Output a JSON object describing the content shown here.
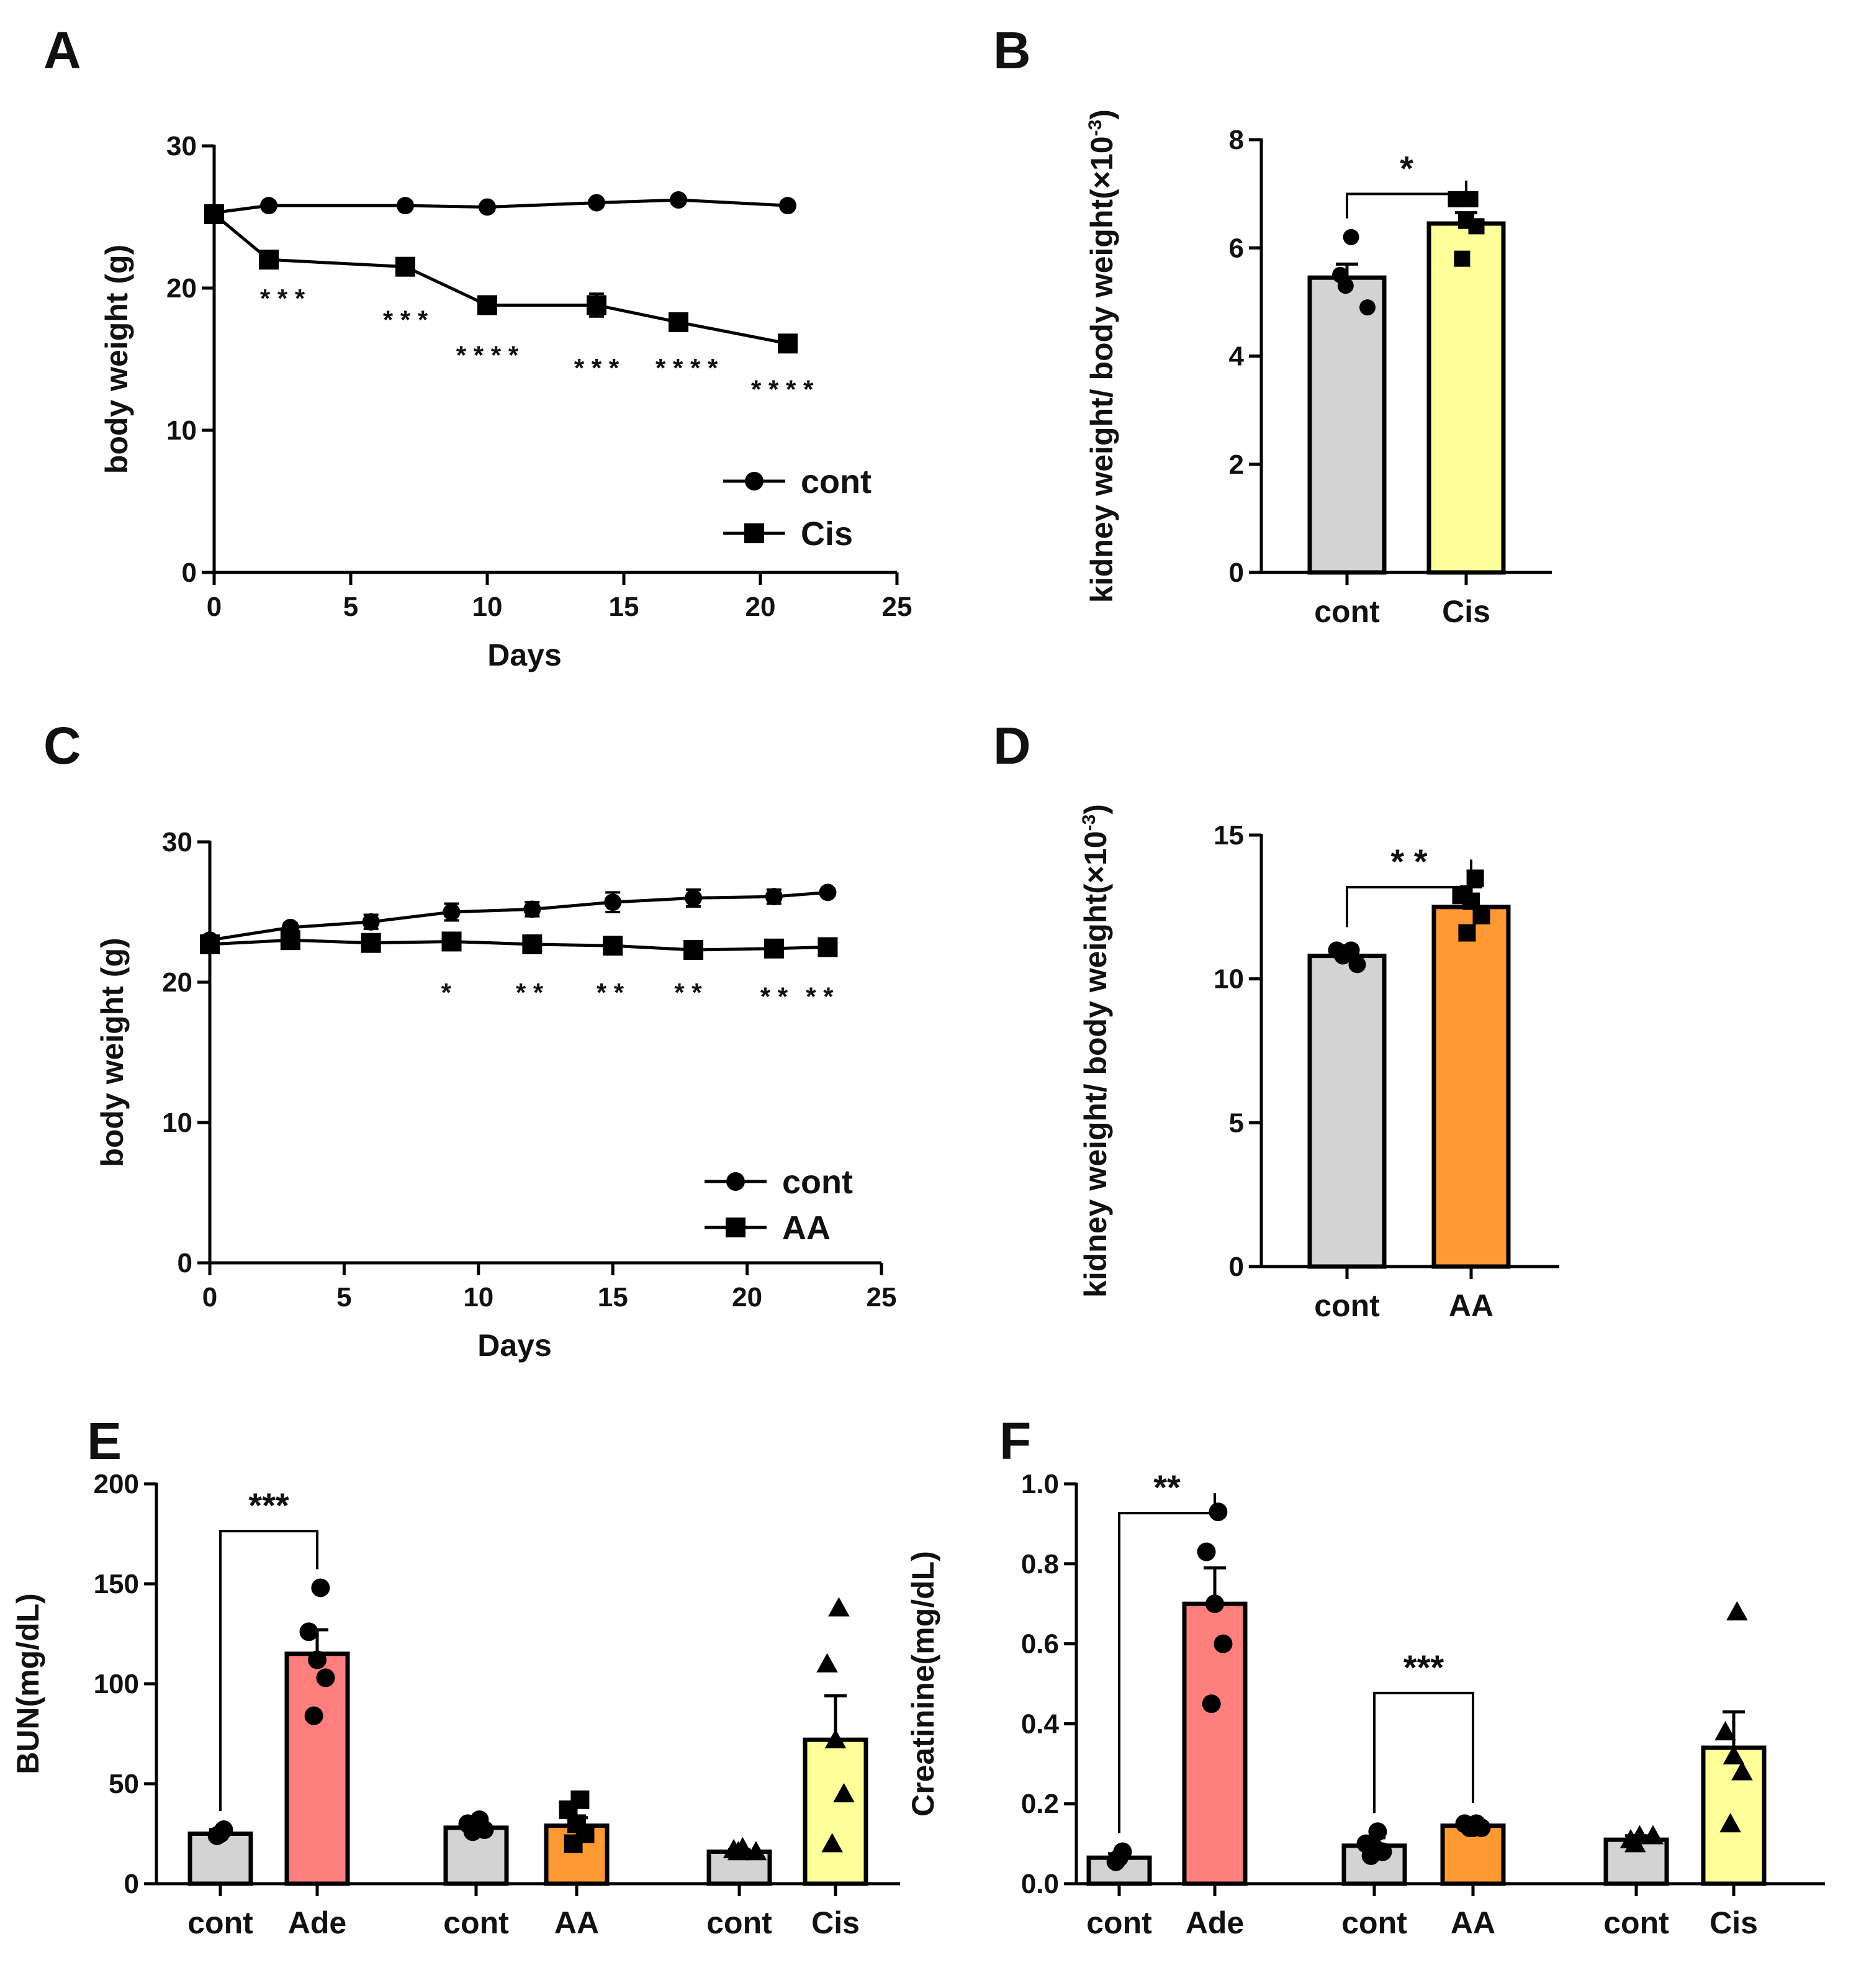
{
  "panel_labels": [
    "A",
    "B",
    "C",
    "D",
    "E",
    "F"
  ],
  "colors": {
    "ink": "#000000",
    "cont_bar": "#d3d3d3",
    "cis_bar": "#ffff99",
    "aa_bar": "#ff9933",
    "ade_bar": "#ff7f7f",
    "star_color": "#0b2a5a"
  },
  "chart_data": [
    {
      "id": "A",
      "type": "line",
      "xlabel": "Days",
      "ylabel": "body weight (g)",
      "xlim": [
        0,
        25
      ],
      "ylim": [
        0,
        30
      ],
      "xticks": [
        0,
        5,
        10,
        15,
        20,
        25
      ],
      "yticks": [
        0,
        10,
        20,
        30
      ],
      "legend_position": "bottom-right",
      "series": [
        {
          "name": "cont",
          "marker": "circle",
          "x": [
            0,
            2,
            7,
            10,
            14,
            17,
            21
          ],
          "y": [
            25.3,
            25.8,
            25.8,
            25.7,
            26.0,
            26.2,
            25.8
          ],
          "err": [
            0,
            0,
            0,
            0,
            0,
            0,
            0
          ]
        },
        {
          "name": "Cis",
          "marker": "square",
          "x": [
            0,
            2,
            7,
            10,
            14,
            17,
            21
          ],
          "y": [
            25.2,
            22.0,
            21.5,
            18.8,
            18.8,
            17.6,
            16.1
          ],
          "err": [
            0,
            0.3,
            0.4,
            0.6,
            0.8,
            0.4,
            0.3
          ]
        }
      ],
      "annotations": [
        {
          "text": "* * *",
          "x": 2.5,
          "y": 19.3
        },
        {
          "text": "* * *",
          "x": 7.0,
          "y": 17.8
        },
        {
          "text": "* * * *",
          "x": 10.0,
          "y": 15.3
        },
        {
          "text": "* * *",
          "x": 14.0,
          "y": 14.4
        },
        {
          "text": "* * * *",
          "x": 17.3,
          "y": 14.4
        },
        {
          "text": "* * * *",
          "x": 20.8,
          "y": 12.9
        }
      ]
    },
    {
      "id": "B",
      "type": "bar",
      "ylabel": "kidney weight/ body weight(×10",
      "ylabel_sup": "-3",
      "ylabel_close": ")",
      "categories": [
        "cont",
        "Cis"
      ],
      "values": [
        5.45,
        6.45
      ],
      "errors": [
        0.25,
        0.2
      ],
      "points": [
        [
          6.2,
          5.5,
          5.3,
          4.9
        ],
        [
          6.9,
          6.9,
          6.5,
          6.4,
          5.8
        ]
      ],
      "markers": [
        "circle",
        "square"
      ],
      "bar_colors": [
        "#d3d3d3",
        "#ffff99"
      ],
      "ylim": [
        0,
        8
      ],
      "yticks": [
        0,
        2,
        4,
        6,
        8
      ],
      "significance": [
        {
          "from": 0,
          "to": 1,
          "text": "*",
          "y": 7.8
        }
      ]
    },
    {
      "id": "C",
      "type": "line",
      "xlabel": "Days",
      "ylabel": "body weight (g)",
      "xlim": [
        0,
        25
      ],
      "ylim": [
        0,
        30
      ],
      "xticks": [
        0,
        5,
        10,
        15,
        20,
        25
      ],
      "yticks": [
        0,
        10,
        20,
        30
      ],
      "legend_position": "bottom-right",
      "series": [
        {
          "name": "cont",
          "marker": "circle",
          "x": [
            0,
            3,
            6,
            9,
            12,
            15,
            18,
            21,
            23
          ],
          "y": [
            23.0,
            23.9,
            24.3,
            25.0,
            25.2,
            25.7,
            26.0,
            26.1,
            26.4
          ],
          "err": [
            0.3,
            0.3,
            0.5,
            0.6,
            0.5,
            0.7,
            0.6,
            0.5,
            0.2
          ]
        },
        {
          "name": "AA",
          "marker": "square",
          "x": [
            0,
            3,
            6,
            9,
            12,
            15,
            18,
            21,
            23
          ],
          "y": [
            22.7,
            23.0,
            22.8,
            22.9,
            22.7,
            22.6,
            22.3,
            22.4,
            22.5
          ],
          "err": [
            0.2,
            0.2,
            0.2,
            0.3,
            0.3,
            0.2,
            0.2,
            0.2,
            0.2
          ]
        }
      ],
      "annotations": [
        {
          "text": "*",
          "x": 8.8,
          "y": 19.3
        },
        {
          "text": "* *",
          "x": 11.9,
          "y": 19.3
        },
        {
          "text": "* *",
          "x": 14.9,
          "y": 19.3
        },
        {
          "text": "* *",
          "x": 17.8,
          "y": 19.3
        },
        {
          "text": "* *",
          "x": 21.0,
          "y": 19.0
        },
        {
          "text": "* *",
          "x": 22.7,
          "y": 19.0
        }
      ]
    },
    {
      "id": "D",
      "type": "bar",
      "ylabel": "kidney weight/ body weight(×10",
      "ylabel_sup": "-3",
      "ylabel_close": ")",
      "categories": [
        "cont",
        "AA"
      ],
      "values": [
        10.8,
        12.5
      ],
      "errors": [
        0.35,
        0.7
      ],
      "points": [
        [
          11.0,
          11.0,
          10.9,
          10.5,
          10.8
        ],
        [
          13.5,
          12.9,
          12.7,
          12.2,
          11.6
        ]
      ],
      "markers": [
        "circle",
        "square"
      ],
      "bar_colors": [
        "#d3d3d3",
        "#ff9933"
      ],
      "ylim": [
        0,
        15
      ],
      "yticks": [
        0,
        5,
        10,
        15
      ],
      "significance": [
        {
          "from": 0,
          "to": 1,
          "text": "* *",
          "y": 14.7
        }
      ]
    },
    {
      "id": "E",
      "type": "bar",
      "ylabel": "BUN(mg/dL)",
      "categories": [
        "cont",
        "Ade",
        "cont",
        "AA",
        "cont",
        "Cis"
      ],
      "values": [
        25,
        115,
        28,
        29,
        16,
        72
      ],
      "errors": [
        2,
        12,
        2,
        4,
        1,
        22
      ],
      "points": [
        [
          27,
          25,
          24
        ],
        [
          148,
          126,
          112,
          103,
          84
        ],
        [
          32,
          30,
          29,
          27,
          26
        ],
        [
          42,
          37,
          30,
          25,
          20
        ],
        [
          18,
          17,
          16,
          16
        ],
        [
          138,
          110,
          72,
          45,
          20
        ]
      ],
      "markers": [
        "circle",
        "circle",
        "circle",
        "square",
        "triangle",
        "triangle"
      ],
      "bar_colors": [
        "#d3d3d3",
        "#ff7f7f",
        "#d3d3d3",
        "#ff9933",
        "#d3d3d3",
        "#ffff99"
      ],
      "ylim": [
        0,
        200
      ],
      "yticks": [
        0,
        50,
        100,
        150,
        200
      ],
      "significance": [
        {
          "from": 0,
          "to": 1,
          "text": "***",
          "y": 195
        }
      ]
    },
    {
      "id": "F",
      "type": "bar",
      "ylabel": "Creatinine(mg/dL)",
      "categories": [
        "cont",
        "Ade",
        "cont",
        "AA",
        "cont",
        "Cis"
      ],
      "values": [
        0.065,
        0.7,
        0.095,
        0.145,
        0.11,
        0.34
      ],
      "errors": [
        0.01,
        0.09,
        0.02,
        0.01,
        0.01,
        0.09
      ],
      "points": [
        [
          0.08,
          0.065,
          0.055
        ],
        [
          0.93,
          0.83,
          0.7,
          0.6,
          0.45
        ],
        [
          0.13,
          0.1,
          0.09,
          0.08,
          0.07
        ],
        [
          0.15,
          0.15,
          0.14,
          0.14,
          0.14
        ],
        [
          0.12,
          0.11,
          0.1,
          0.12
        ],
        [
          0.68,
          0.38,
          0.32,
          0.28,
          0.15
        ]
      ],
      "markers": [
        "circle",
        "circle",
        "circle",
        "circle",
        "triangle",
        "triangle"
      ],
      "bar_colors": [
        "#d3d3d3",
        "#ff7f7f",
        "#d3d3d3",
        "#ff9933",
        "#d3d3d3",
        "#ffff99"
      ],
      "ylim": [
        0,
        1.0
      ],
      "yticks": [
        0.0,
        0.2,
        0.4,
        0.6,
        0.8,
        1.0
      ],
      "ytick_decimals": 1,
      "significance": [
        {
          "from": 0,
          "to": 1,
          "text": "**",
          "y": 1.02
        },
        {
          "from": 2,
          "to": 3,
          "text": "***",
          "y": 0.57
        }
      ]
    }
  ]
}
